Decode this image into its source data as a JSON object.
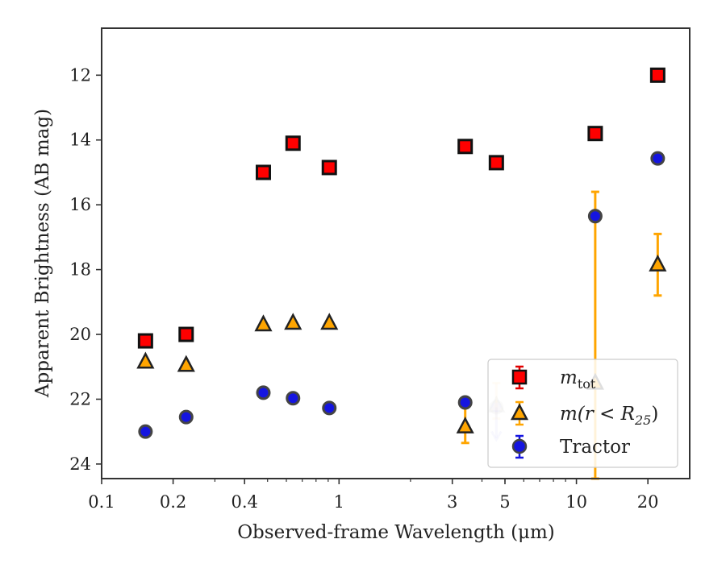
{
  "chart_data": {
    "type": "scatter",
    "title": "",
    "xlabel": "Observed-frame Wavelength (μm)",
    "ylabel": "Apparent Brightness (AB mag)",
    "xscale": "log",
    "xlim": [
      0.1,
      30
    ],
    "ylim": [
      24.45,
      10.55
    ],
    "y_inverted": true,
    "xticks": [
      {
        "value": 0.1,
        "label": "0.1"
      },
      {
        "value": 0.2,
        "label": "0.2"
      },
      {
        "value": 0.4,
        "label": "0.4"
      },
      {
        "value": 1,
        "label": "1"
      },
      {
        "value": 3,
        "label": "3"
      },
      {
        "value": 5,
        "label": "5"
      },
      {
        "value": 10,
        "label": "10"
      },
      {
        "value": 20,
        "label": "20"
      }
    ],
    "yticks": [
      {
        "value": 12,
        "label": "12"
      },
      {
        "value": 14,
        "label": "14"
      },
      {
        "value": 16,
        "label": "16"
      },
      {
        "value": 18,
        "label": "18"
      },
      {
        "value": 20,
        "label": "20"
      },
      {
        "value": 22,
        "label": "22"
      },
      {
        "value": 24,
        "label": "24"
      }
    ],
    "legend_position": "lower-right",
    "series": [
      {
        "legend_text": "m_tot",
        "marker": "square",
        "color": "#ff0000",
        "edge_color": "#111111",
        "errorbar_color": "#e00000",
        "points": [
          {
            "x": 0.153,
            "y": 20.2
          },
          {
            "x": 0.227,
            "y": 20.0
          },
          {
            "x": 0.48,
            "y": 15.0
          },
          {
            "x": 0.64,
            "y": 14.1
          },
          {
            "x": 0.91,
            "y": 14.85
          },
          {
            "x": 3.4,
            "y": 14.2
          },
          {
            "x": 4.6,
            "y": 14.7
          },
          {
            "x": 12.0,
            "y": 13.8
          },
          {
            "x": 22.0,
            "y": 12.0
          }
        ]
      },
      {
        "legend_text": "m(r < R25)",
        "marker": "triangle",
        "color": "#ffa500",
        "edge_color": "#222222",
        "errorbar_color": "#ffa500",
        "points": [
          {
            "x": 0.153,
            "y": 20.85
          },
          {
            "x": 0.227,
            "y": 20.95
          },
          {
            "x": 0.48,
            "y": 19.7
          },
          {
            "x": 0.64,
            "y": 19.65
          },
          {
            "x": 0.91,
            "y": 19.65
          },
          {
            "x": 3.4,
            "y": 22.85,
            "yerr": [
              22.25,
              23.35
            ]
          },
          {
            "x": 4.6,
            "y": 22.2,
            "yerr": [
              21.5,
              22.6
            ],
            "faded": true
          },
          {
            "x": 12.0,
            "y": 21.5,
            "yerr": [
              15.6,
              24.45
            ]
          },
          {
            "x": 22.0,
            "y": 17.85,
            "yerr": [
              16.9,
              18.8
            ]
          }
        ]
      },
      {
        "legend_text": "Tractor",
        "marker": "circle",
        "color": "#1515e0",
        "edge_color": "#444444",
        "errorbar_color": "#1515e0",
        "points": [
          {
            "x": 0.153,
            "y": 23.0
          },
          {
            "x": 0.227,
            "y": 22.55
          },
          {
            "x": 0.48,
            "y": 21.8
          },
          {
            "x": 0.64,
            "y": 21.97
          },
          {
            "x": 0.91,
            "y": 22.27
          },
          {
            "x": 3.4,
            "y": 22.1
          },
          {
            "x": 4.6,
            "y": 22.25,
            "upper_limit": true,
            "faded": true
          },
          {
            "x": 12.0,
            "y": 16.35
          },
          {
            "x": 22.0,
            "y": 14.57
          }
        ]
      }
    ]
  },
  "legend": {
    "mtot_main": "m",
    "mtot_sub": "tot",
    "mr_prefix": "m(r < R",
    "mr_sub": "25",
    "mr_suffix": ")",
    "tractor": "Tractor"
  }
}
